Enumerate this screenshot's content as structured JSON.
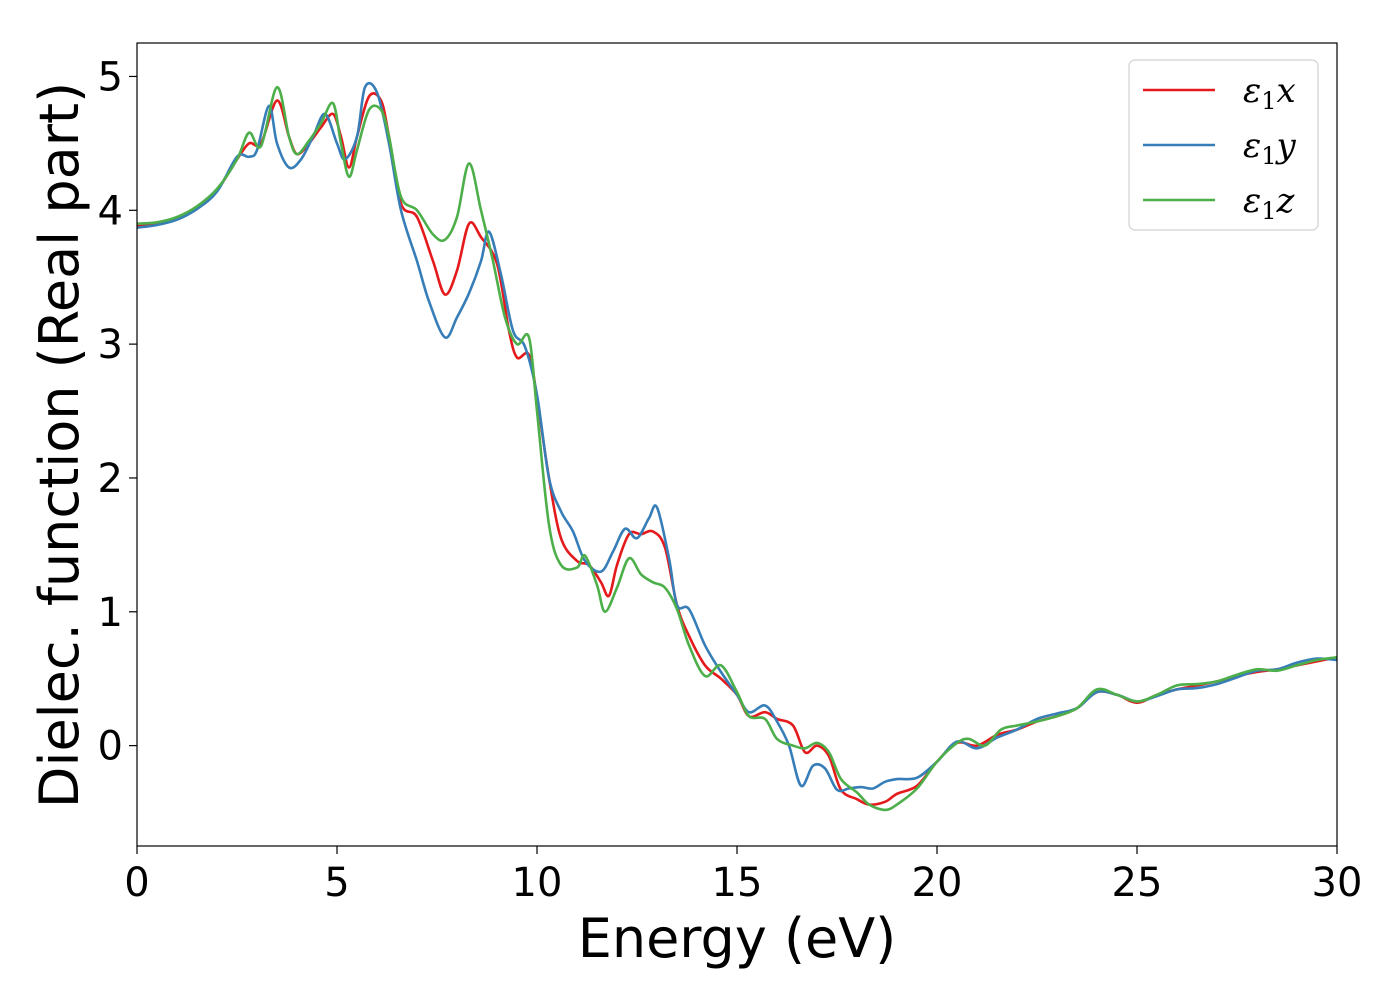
{
  "chart_data": {
    "type": "line",
    "xlabel": "Energy (eV)",
    "ylabel": "Dielec. function (Real part)",
    "xlim": [
      0,
      30
    ],
    "ylim": [
      -0.75,
      5.25
    ],
    "xticks": [
      0,
      5,
      10,
      15,
      20,
      25,
      30
    ],
    "yticks": [
      0,
      1,
      2,
      3,
      4,
      5
    ],
    "grid": false,
    "legend_position": "top-right",
    "series": [
      {
        "name": "ε1x",
        "legend_base": "ε",
        "legend_sub": "1",
        "legend_suffix": "x",
        "color": "#e41a1c",
        "points": [
          [
            0,
            3.88
          ],
          [
            0.5,
            3.9
          ],
          [
            1,
            3.94
          ],
          [
            1.5,
            4.02
          ],
          [
            2,
            4.15
          ],
          [
            2.5,
            4.38
          ],
          [
            2.8,
            4.5
          ],
          [
            3.1,
            4.5
          ],
          [
            3.5,
            4.82
          ],
          [
            3.8,
            4.55
          ],
          [
            4,
            4.42
          ],
          [
            4.3,
            4.5
          ],
          [
            4.6,
            4.62
          ],
          [
            4.9,
            4.72
          ],
          [
            5.1,
            4.55
          ],
          [
            5.3,
            4.32
          ],
          [
            5.5,
            4.55
          ],
          [
            5.8,
            4.85
          ],
          [
            6.1,
            4.82
          ],
          [
            6.3,
            4.55
          ],
          [
            6.6,
            4.05
          ],
          [
            7,
            3.95
          ],
          [
            7.4,
            3.62
          ],
          [
            7.7,
            3.37
          ],
          [
            8,
            3.55
          ],
          [
            8.3,
            3.9
          ],
          [
            8.6,
            3.8
          ],
          [
            9,
            3.6
          ],
          [
            9.3,
            3.1
          ],
          [
            9.5,
            2.9
          ],
          [
            9.8,
            2.92
          ],
          [
            10,
            2.6
          ],
          [
            10.3,
            2.0
          ],
          [
            10.6,
            1.55
          ],
          [
            11,
            1.38
          ],
          [
            11.3,
            1.35
          ],
          [
            11.6,
            1.22
          ],
          [
            11.8,
            1.12
          ],
          [
            12,
            1.35
          ],
          [
            12.3,
            1.58
          ],
          [
            12.6,
            1.58
          ],
          [
            12.9,
            1.6
          ],
          [
            13.2,
            1.48
          ],
          [
            13.5,
            1.05
          ],
          [
            13.8,
            0.82
          ],
          [
            14.2,
            0.6
          ],
          [
            14.6,
            0.5
          ],
          [
            15,
            0.38
          ],
          [
            15.3,
            0.22
          ],
          [
            15.7,
            0.25
          ],
          [
            16,
            0.2
          ],
          [
            16.4,
            0.15
          ],
          [
            16.7,
            -0.05
          ],
          [
            17,
            0.0
          ],
          [
            17.3,
            -0.08
          ],
          [
            17.6,
            -0.33
          ],
          [
            18,
            -0.4
          ],
          [
            18.3,
            -0.44
          ],
          [
            18.7,
            -0.42
          ],
          [
            19,
            -0.36
          ],
          [
            19.5,
            -0.3
          ],
          [
            20,
            -0.12
          ],
          [
            20.5,
            0.02
          ],
          [
            21,
            0.0
          ],
          [
            21.5,
            0.08
          ],
          [
            22,
            0.12
          ],
          [
            22.5,
            0.18
          ],
          [
            23,
            0.22
          ],
          [
            23.5,
            0.28
          ],
          [
            24,
            0.4
          ],
          [
            24.5,
            0.38
          ],
          [
            25,
            0.32
          ],
          [
            25.5,
            0.38
          ],
          [
            26,
            0.42
          ],
          [
            26.5,
            0.45
          ],
          [
            27,
            0.48
          ],
          [
            27.5,
            0.52
          ],
          [
            28,
            0.55
          ],
          [
            28.5,
            0.57
          ],
          [
            29,
            0.6
          ],
          [
            29.5,
            0.63
          ],
          [
            30,
            0.66
          ]
        ]
      },
      {
        "name": "ε1y",
        "legend_base": "ε",
        "legend_sub": "1",
        "legend_suffix": "y",
        "color": "#377eb8",
        "points": [
          [
            0,
            3.87
          ],
          [
            0.5,
            3.89
          ],
          [
            1,
            3.93
          ],
          [
            1.5,
            4.01
          ],
          [
            2,
            4.14
          ],
          [
            2.5,
            4.4
          ],
          [
            2.8,
            4.4
          ],
          [
            3.0,
            4.45
          ],
          [
            3.3,
            4.78
          ],
          [
            3.5,
            4.5
          ],
          [
            3.8,
            4.32
          ],
          [
            4.1,
            4.38
          ],
          [
            4.4,
            4.55
          ],
          [
            4.7,
            4.72
          ],
          [
            5,
            4.5
          ],
          [
            5.2,
            4.38
          ],
          [
            5.5,
            4.55
          ],
          [
            5.7,
            4.92
          ],
          [
            6,
            4.88
          ],
          [
            6.3,
            4.5
          ],
          [
            6.6,
            4.0
          ],
          [
            7,
            3.62
          ],
          [
            7.3,
            3.32
          ],
          [
            7.7,
            3.05
          ],
          [
            8,
            3.2
          ],
          [
            8.3,
            3.38
          ],
          [
            8.6,
            3.62
          ],
          [
            8.8,
            3.84
          ],
          [
            9.1,
            3.52
          ],
          [
            9.4,
            3.1
          ],
          [
            9.7,
            2.98
          ],
          [
            10,
            2.62
          ],
          [
            10.3,
            2.0
          ],
          [
            10.6,
            1.75
          ],
          [
            10.9,
            1.6
          ],
          [
            11.2,
            1.38
          ],
          [
            11.6,
            1.3
          ],
          [
            11.9,
            1.45
          ],
          [
            12.2,
            1.62
          ],
          [
            12.5,
            1.55
          ],
          [
            12.8,
            1.7
          ],
          [
            13,
            1.78
          ],
          [
            13.3,
            1.4
          ],
          [
            13.5,
            1.05
          ],
          [
            13.8,
            1.02
          ],
          [
            14.2,
            0.75
          ],
          [
            14.6,
            0.55
          ],
          [
            15,
            0.38
          ],
          [
            15.3,
            0.25
          ],
          [
            15.7,
            0.3
          ],
          [
            16,
            0.18
          ],
          [
            16.3,
            0.0
          ],
          [
            16.6,
            -0.3
          ],
          [
            16.9,
            -0.15
          ],
          [
            17.2,
            -0.17
          ],
          [
            17.5,
            -0.33
          ],
          [
            17.8,
            -0.32
          ],
          [
            18.1,
            -0.31
          ],
          [
            18.4,
            -0.32
          ],
          [
            18.7,
            -0.27
          ],
          [
            19,
            -0.25
          ],
          [
            19.5,
            -0.24
          ],
          [
            20,
            -0.12
          ],
          [
            20.5,
            0.03
          ],
          [
            21,
            -0.02
          ],
          [
            21.5,
            0.06
          ],
          [
            22,
            0.12
          ],
          [
            22.5,
            0.2
          ],
          [
            23,
            0.24
          ],
          [
            23.5,
            0.28
          ],
          [
            24,
            0.4
          ],
          [
            24.5,
            0.38
          ],
          [
            25,
            0.33
          ],
          [
            25.5,
            0.37
          ],
          [
            26,
            0.42
          ],
          [
            26.5,
            0.43
          ],
          [
            27,
            0.46
          ],
          [
            27.5,
            0.51
          ],
          [
            28,
            0.56
          ],
          [
            28.5,
            0.57
          ],
          [
            29,
            0.62
          ],
          [
            29.5,
            0.65
          ],
          [
            30,
            0.64
          ]
        ]
      },
      {
        "name": "ε1z",
        "legend_base": "ε",
        "legend_sub": "1",
        "legend_suffix": "z",
        "color": "#4daf4a",
        "points": [
          [
            0,
            3.9
          ],
          [
            0.5,
            3.91
          ],
          [
            1,
            3.95
          ],
          [
            1.5,
            4.03
          ],
          [
            2,
            4.16
          ],
          [
            2.5,
            4.38
          ],
          [
            2.8,
            4.58
          ],
          [
            3.1,
            4.48
          ],
          [
            3.5,
            4.92
          ],
          [
            3.8,
            4.55
          ],
          [
            4,
            4.42
          ],
          [
            4.3,
            4.52
          ],
          [
            4.6,
            4.65
          ],
          [
            4.9,
            4.8
          ],
          [
            5.1,
            4.5
          ],
          [
            5.3,
            4.25
          ],
          [
            5.5,
            4.45
          ],
          [
            5.8,
            4.75
          ],
          [
            6.1,
            4.75
          ],
          [
            6.3,
            4.55
          ],
          [
            6.6,
            4.1
          ],
          [
            7,
            4.0
          ],
          [
            7.4,
            3.82
          ],
          [
            7.7,
            3.78
          ],
          [
            8,
            3.95
          ],
          [
            8.3,
            4.35
          ],
          [
            8.6,
            4.0
          ],
          [
            8.9,
            3.62
          ],
          [
            9.2,
            3.2
          ],
          [
            9.5,
            3.0
          ],
          [
            9.8,
            3.05
          ],
          [
            10,
            2.5
          ],
          [
            10.3,
            1.65
          ],
          [
            10.6,
            1.35
          ],
          [
            11,
            1.33
          ],
          [
            11.2,
            1.42
          ],
          [
            11.5,
            1.2
          ],
          [
            11.7,
            1.0
          ],
          [
            12,
            1.18
          ],
          [
            12.3,
            1.4
          ],
          [
            12.6,
            1.28
          ],
          [
            12.9,
            1.22
          ],
          [
            13.2,
            1.18
          ],
          [
            13.5,
            1.02
          ],
          [
            13.8,
            0.75
          ],
          [
            14.2,
            0.52
          ],
          [
            14.6,
            0.6
          ],
          [
            15,
            0.4
          ],
          [
            15.3,
            0.22
          ],
          [
            15.7,
            0.2
          ],
          [
            16,
            0.05
          ],
          [
            16.4,
            0.0
          ],
          [
            16.7,
            -0.02
          ],
          [
            17,
            0.02
          ],
          [
            17.3,
            -0.05
          ],
          [
            17.6,
            -0.25
          ],
          [
            18,
            -0.35
          ],
          [
            18.3,
            -0.44
          ],
          [
            18.7,
            -0.48
          ],
          [
            19,
            -0.44
          ],
          [
            19.5,
            -0.32
          ],
          [
            20,
            -0.12
          ],
          [
            20.5,
            0.02
          ],
          [
            20.8,
            0.05
          ],
          [
            21.2,
            0.0
          ],
          [
            21.6,
            0.12
          ],
          [
            22,
            0.15
          ],
          [
            22.5,
            0.18
          ],
          [
            23,
            0.22
          ],
          [
            23.5,
            0.28
          ],
          [
            24,
            0.42
          ],
          [
            24.5,
            0.38
          ],
          [
            25,
            0.33
          ],
          [
            25.5,
            0.38
          ],
          [
            26,
            0.45
          ],
          [
            26.5,
            0.46
          ],
          [
            27,
            0.48
          ],
          [
            27.5,
            0.53
          ],
          [
            28,
            0.57
          ],
          [
            28.5,
            0.56
          ],
          [
            29,
            0.6
          ],
          [
            29.5,
            0.64
          ],
          [
            30,
            0.66
          ]
        ]
      }
    ]
  }
}
